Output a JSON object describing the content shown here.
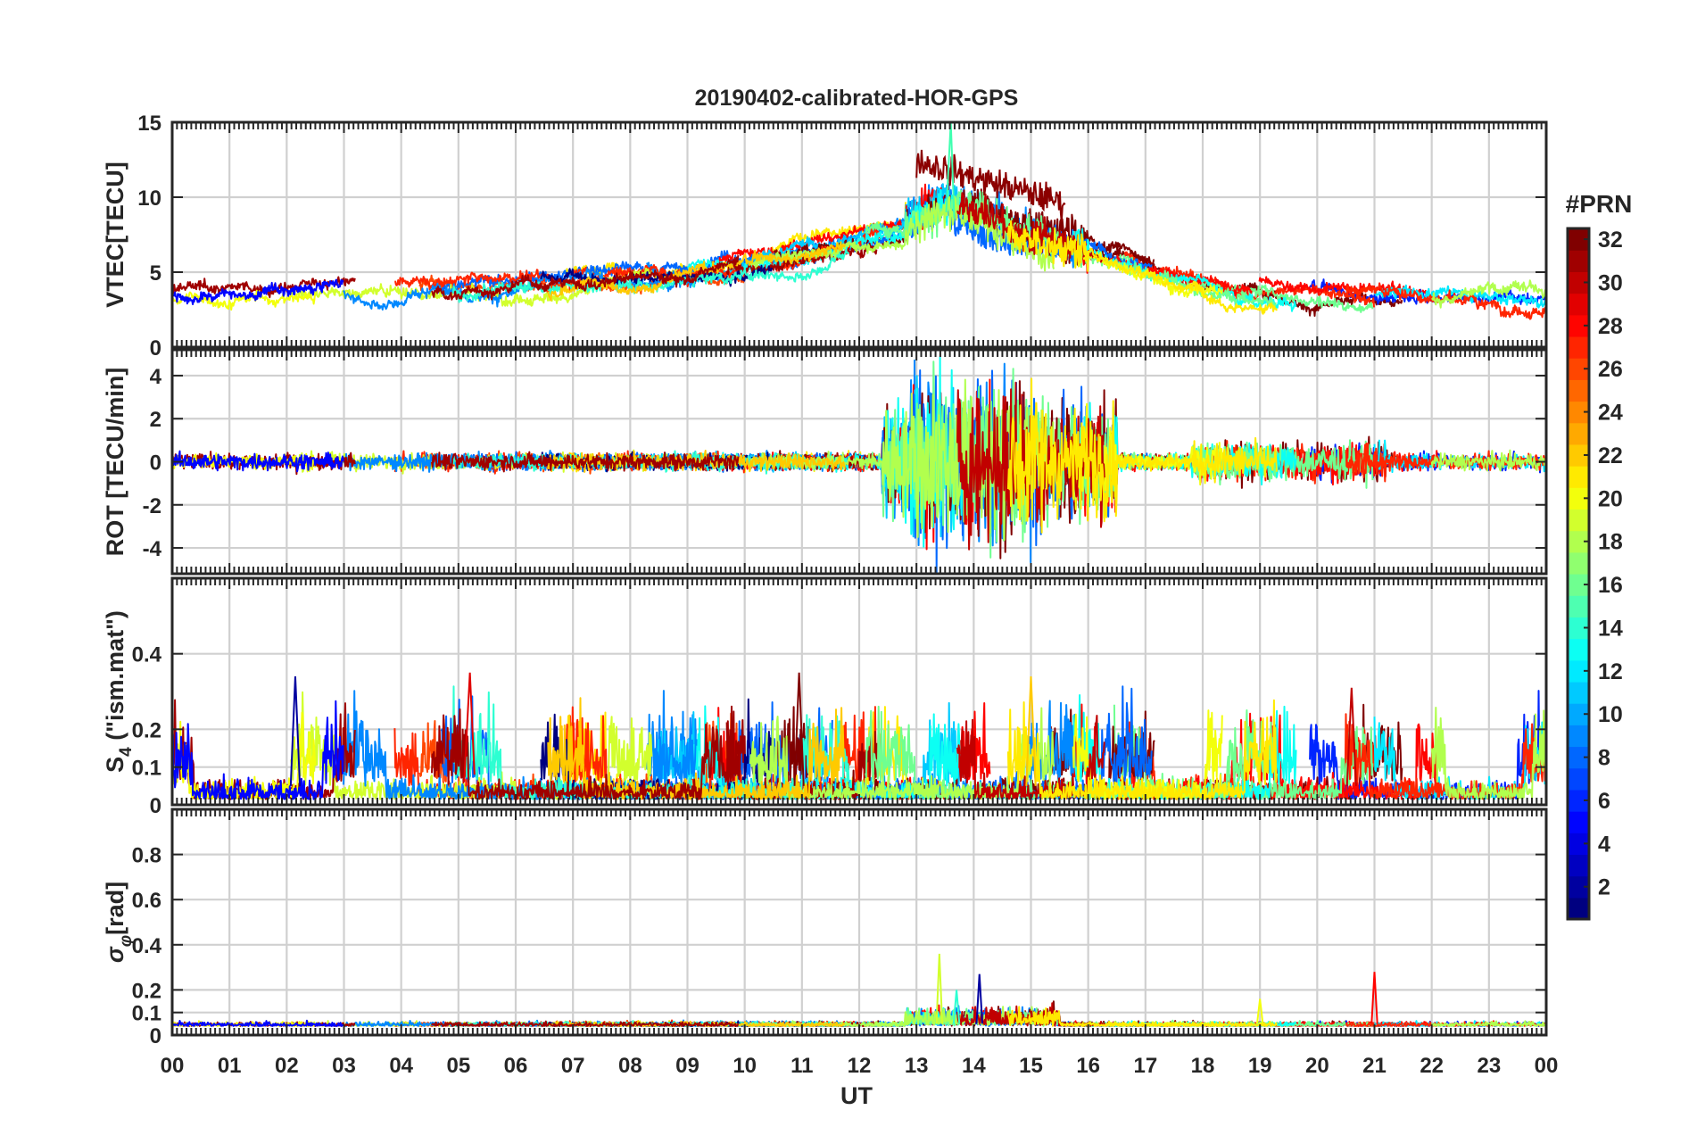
{
  "chart_data": {
    "type": "line",
    "title": "20190402-calibrated-HOR-GPS",
    "xlabel": "UT",
    "x_ticks": [
      "00",
      "01",
      "02",
      "03",
      "04",
      "05",
      "06",
      "07",
      "08",
      "09",
      "10",
      "11",
      "12",
      "13",
      "14",
      "15",
      "16",
      "17",
      "18",
      "19",
      "20",
      "21",
      "22",
      "23",
      "00"
    ],
    "xlim_hours": [
      0,
      24
    ],
    "colorbar": {
      "label": "#PRN",
      "range": [
        1,
        32
      ],
      "ticks": [
        2,
        4,
        6,
        8,
        10,
        12,
        14,
        16,
        18,
        20,
        22,
        24,
        26,
        28,
        30,
        32
      ],
      "tick_labels": [
        "2",
        "4",
        "6",
        "8",
        "10",
        "12",
        "14",
        "16",
        "18",
        "20",
        "22",
        "24",
        "26",
        "28",
        "30",
        "32"
      ],
      "colormap": "jet"
    },
    "panels": [
      {
        "id": "vtec",
        "ylabel": "VTEC[TECU]",
        "ylim": [
          0,
          15
        ],
        "yticks": [
          0,
          5,
          10,
          15
        ],
        "ytick_labels": [
          "0",
          "5",
          "10",
          "15"
        ],
        "features": {
          "baseline_tecu": 3,
          "midday_peak_tecu": 12.3,
          "peak_hour": 13.1,
          "spike_max_tecu": 15,
          "spike_hour": 13.6
        }
      },
      {
        "id": "rot",
        "ylabel": "ROT [TECU/min]",
        "ylim": [
          -5.2,
          5.2
        ],
        "yticks": [
          -4,
          -2,
          0,
          2,
          4
        ],
        "ytick_labels": [
          "-4",
          "-2",
          "0",
          "2",
          "4"
        ],
        "features": {
          "quiet_amplitude": 0.2,
          "disturbed_window_hours": [
            12.4,
            16.5
          ],
          "disturbed_amplitude": 4.8,
          "late_activity_hours": [
            17.8,
            21.2
          ]
        }
      },
      {
        "id": "s4",
        "ylabel": "S4 (\"ism.mat\")",
        "ylabel_main": "S",
        "ylabel_sub": "4",
        "ylabel_rest": " (\"ism.mat\")",
        "ylim": [
          0,
          0.6
        ],
        "yticks": [
          0,
          0.1,
          0.2,
          0.4
        ],
        "ytick_labels": [
          "0",
          "0.1",
          "0.2",
          "0.4"
        ],
        "features": {
          "background_level": 0.03,
          "max_value": 0.35,
          "max_hour": 5.2
        }
      },
      {
        "id": "sigma_phi",
        "ylabel": "σφ[rad]",
        "ylabel_main": "σ",
        "ylabel_sub": "φ",
        "ylabel_rest": "[rad]",
        "ylim": [
          0,
          1.0
        ],
        "yticks": [
          0,
          0.1,
          0.2,
          0.4,
          0.6,
          0.8
        ],
        "ytick_labels": [
          "0",
          "0.1",
          "0.2",
          "0.4",
          "0.6",
          "0.8"
        ],
        "features": {
          "background_level": 0.04,
          "max_value": 0.36,
          "max_hour": 13.4
        }
      }
    ],
    "series_colors_sample": [
      "#00008f",
      "#0000ff",
      "#0080ff",
      "#00ffff",
      "#80ff80",
      "#ffff00",
      "#ff8000",
      "#ff0000",
      "#800000"
    ]
  }
}
